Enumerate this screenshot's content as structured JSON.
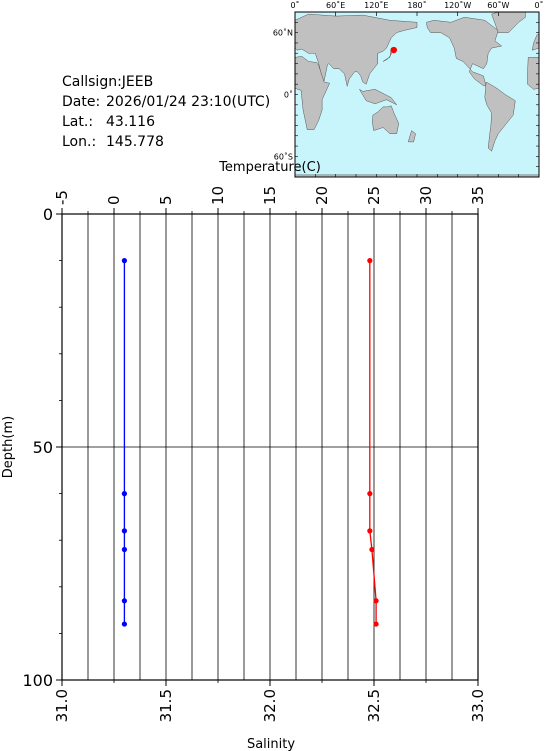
{
  "station": {
    "callsign_label": "Callsign:",
    "callsign": "JEEB",
    "date_label": "Date:",
    "date": "2026/01/24 23:10(UTC)",
    "lat_label": "Lat.:",
    "lat": "43.116",
    "lon_label": "Lon.:",
    "lon": "145.778"
  },
  "map": {
    "top_labels": [
      "0˚",
      "60˚E",
      "120˚E",
      "180˚",
      "120˚W",
      "60˚W",
      "0˚"
    ],
    "left_labels": [
      "60˚N",
      "0˚",
      "60˚S"
    ],
    "ocean_color": "#c8f5fb",
    "land_color": "#c0c0c0",
    "marker_color": "#ff0000",
    "marker": {
      "lat": 43.116,
      "lon": 145.778
    }
  },
  "chart_data": {
    "type": "scatter",
    "top_axis": {
      "label": "Temperature(C)",
      "range": [
        -5,
        35
      ],
      "ticks": [
        -5,
        0,
        5,
        10,
        15,
        20,
        25,
        30,
        35
      ]
    },
    "bottom_axis": {
      "label": "Salinity",
      "range": [
        31.0,
        33.0
      ],
      "ticks": [
        "31.0",
        "31.5",
        "32.0",
        "32.5",
        "33.0"
      ]
    },
    "y_axis": {
      "label": "Depth(m)",
      "range": [
        0,
        100
      ],
      "inverted": true,
      "ticks": [
        0,
        50,
        100
      ]
    },
    "series": [
      {
        "name": "Temperature",
        "axis": "top",
        "color": "#0000ff",
        "points": [
          {
            "x": 1.0,
            "depth": 10
          },
          {
            "x": 1.0,
            "depth": 60
          },
          {
            "x": 1.0,
            "depth": 68
          },
          {
            "x": 1.0,
            "depth": 72
          },
          {
            "x": 1.0,
            "depth": 83
          },
          {
            "x": 1.0,
            "depth": 88
          }
        ]
      },
      {
        "name": "Salinity",
        "axis": "bottom",
        "color": "#ff0000",
        "points": [
          {
            "x": 32.48,
            "depth": 10
          },
          {
            "x": 32.48,
            "depth": 60
          },
          {
            "x": 32.48,
            "depth": 68
          },
          {
            "x": 32.49,
            "depth": 72
          },
          {
            "x": 32.51,
            "depth": 83
          },
          {
            "x": 32.51,
            "depth": 88
          }
        ]
      }
    ],
    "grid": true
  }
}
